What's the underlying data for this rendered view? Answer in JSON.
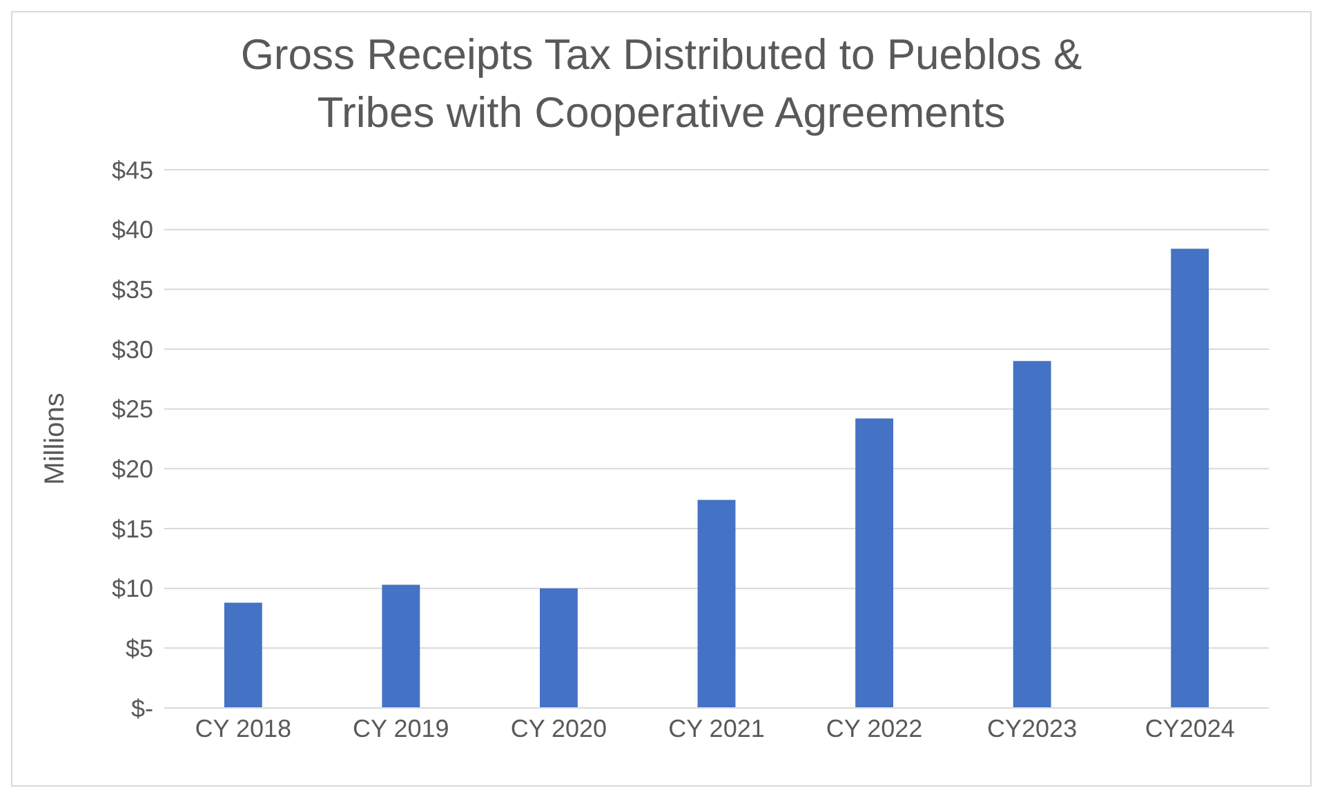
{
  "chart_data": {
    "type": "bar",
    "title": "Gross Receipts Tax Distributed to Pueblos & Tribes with Cooperative Agreements",
    "ylabel": "Millions",
    "categories": [
      "CY 2018",
      "CY 2019",
      "CY 2020",
      "CY 2021",
      "CY 2022",
      "CY2023",
      "CY2024"
    ],
    "values": [
      8.8,
      10.3,
      10.0,
      17.4,
      24.2,
      29.0,
      38.4
    ],
    "color": "#4472c4",
    "ylim": [
      0,
      45
    ],
    "yticks": [
      {
        "value": 0,
        "label": "$-"
      },
      {
        "value": 5,
        "label": "$5"
      },
      {
        "value": 10,
        "label": "$10"
      },
      {
        "value": 15,
        "label": "$15"
      },
      {
        "value": 20,
        "label": "$20"
      },
      {
        "value": 25,
        "label": "$25"
      },
      {
        "value": 30,
        "label": "$30"
      },
      {
        "value": 35,
        "label": "$35"
      },
      {
        "value": 40,
        "label": "$40"
      },
      {
        "value": 45,
        "label": "$45"
      }
    ],
    "grid": "y"
  }
}
